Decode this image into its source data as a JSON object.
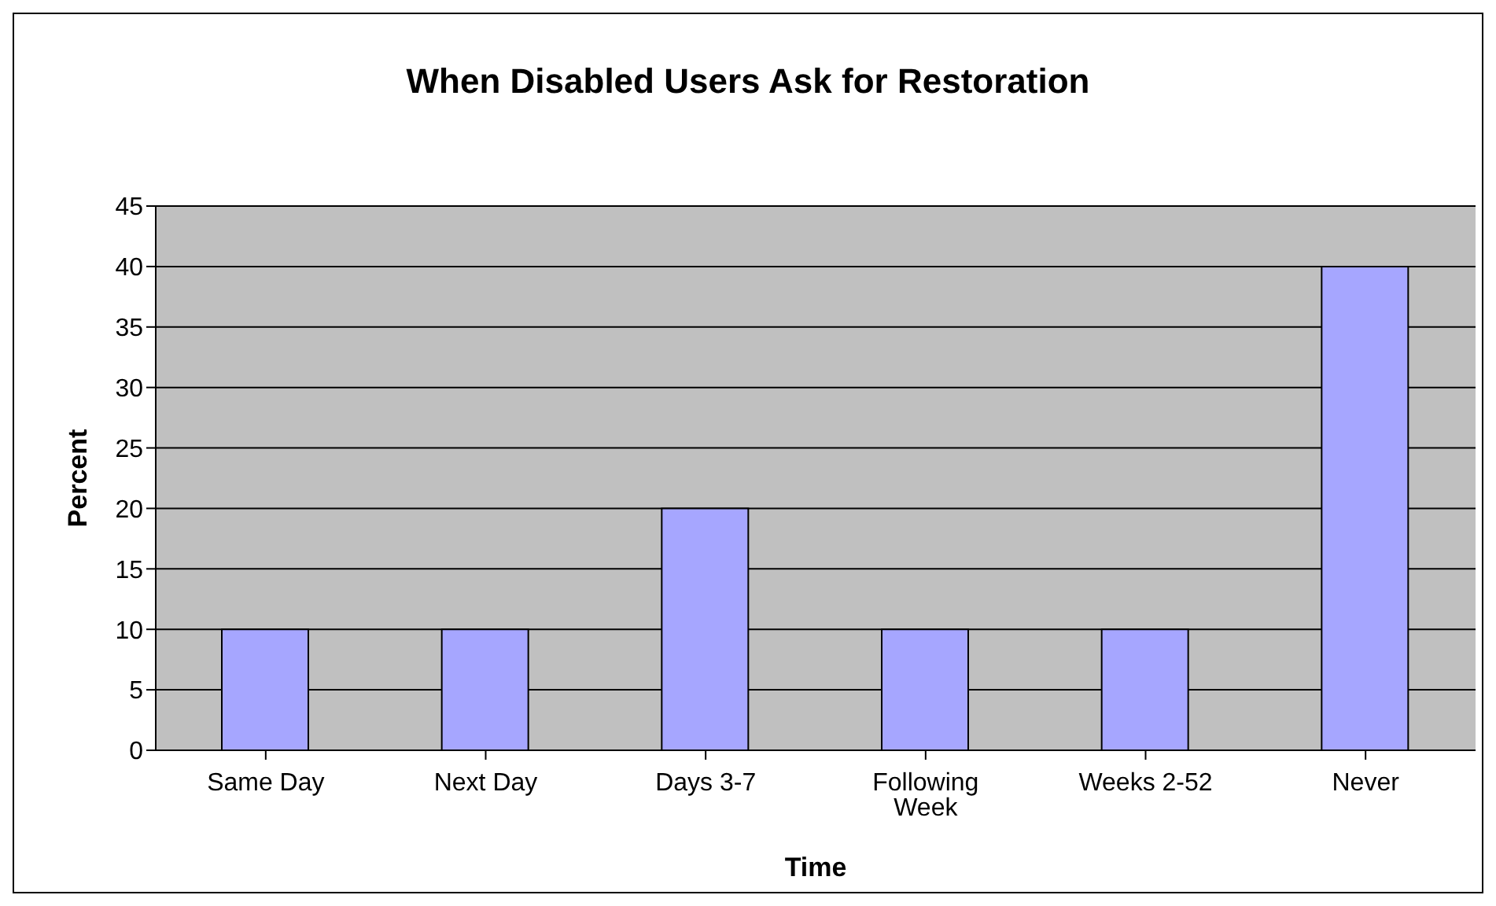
{
  "chart_data": {
    "type": "bar",
    "title": "When Disabled Users Ask for Restoration",
    "xlabel": "Time",
    "ylabel": "Percent",
    "categories": [
      "Same Day",
      "Next Day",
      "Days 3-7",
      "Following Week",
      "Weeks 2-52",
      "Never"
    ],
    "values": [
      10,
      10,
      20,
      10,
      10,
      40
    ],
    "color": "#a6a6ff",
    "ylim": [
      0,
      45
    ],
    "yticks": [
      0,
      5,
      10,
      15,
      20,
      25,
      30,
      35,
      40,
      45
    ],
    "grid": "y",
    "legend": false
  }
}
